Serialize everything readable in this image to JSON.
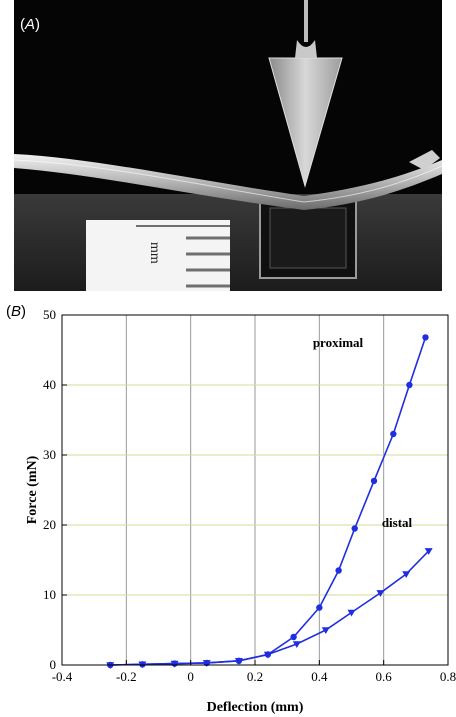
{
  "panel_a": {
    "letter": "A",
    "ruler_unit": "mm"
  },
  "panel_b": {
    "letter": "B"
  },
  "colors": {
    "series": "#1f2ee0",
    "grid_vertical": "#9a9a9a",
    "grid_horizontal": "#d6d99a",
    "photo_bg": "#050505"
  },
  "chart_data": {
    "type": "line",
    "xlabel": "Deflection (mm)",
    "ylabel": "Force (mN)",
    "xlim": [
      -0.4,
      0.8
    ],
    "ylim": [
      0,
      50
    ],
    "x_ticks": [
      "-0.4",
      "-0.2",
      "0",
      "0.2",
      "0.4",
      "0.6",
      "0.8"
    ],
    "y_ticks": [
      "0",
      "10",
      "20",
      "30",
      "40",
      "50"
    ],
    "grid": true,
    "series": [
      {
        "name": "proximal",
        "marker": "circle",
        "x": [
          -0.25,
          -0.15,
          -0.05,
          0.05,
          0.15,
          0.24,
          0.32,
          0.4,
          0.46,
          0.51,
          0.57,
          0.63,
          0.68,
          0.73
        ],
        "y": [
          0.0,
          0.1,
          0.2,
          0.3,
          0.6,
          1.5,
          4.0,
          8.2,
          13.5,
          19.5,
          26.3,
          33.0,
          40.0,
          46.8
        ]
      },
      {
        "name": "distal",
        "marker": "triangle-down",
        "x": [
          -0.25,
          -0.15,
          -0.05,
          0.05,
          0.15,
          0.24,
          0.33,
          0.42,
          0.5,
          0.59,
          0.67,
          0.74
        ],
        "y": [
          0.0,
          0.1,
          0.2,
          0.3,
          0.6,
          1.5,
          3.0,
          5.0,
          7.5,
          10.3,
          13.0,
          16.3
        ]
      }
    ]
  }
}
